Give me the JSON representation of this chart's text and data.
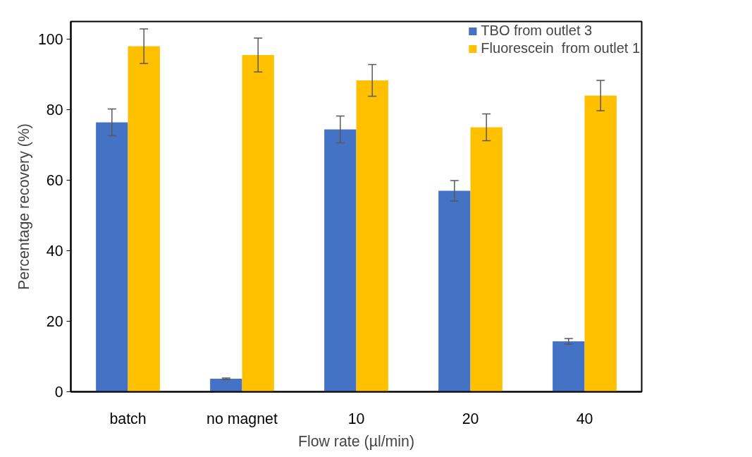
{
  "chart_data": {
    "type": "bar",
    "xlabel": "Flow rate (µl/min)",
    "ylabel": "Percentage recovery (%)",
    "categories": [
      "batch",
      "no magnet",
      "10",
      "20",
      "40"
    ],
    "series": [
      {
        "name": "TBO from outlet 3",
        "color": "#4472c4",
        "values": [
          76.4,
          3.7,
          74.4,
          57.0,
          14.3
        ],
        "errors": [
          3.8,
          0.2,
          3.8,
          2.9,
          0.8
        ]
      },
      {
        "name": "Fluorescein  from outlet 1",
        "color": "#ffc000",
        "values": [
          98.0,
          95.5,
          88.3,
          75.0,
          84.0
        ],
        "errors": [
          4.9,
          4.8,
          4.5,
          3.8,
          4.3
        ]
      }
    ],
    "ylim": [
      0,
      105
    ],
    "yticks": [
      0,
      20,
      40,
      60,
      80,
      100
    ],
    "grid": false,
    "legend": "top right"
  }
}
